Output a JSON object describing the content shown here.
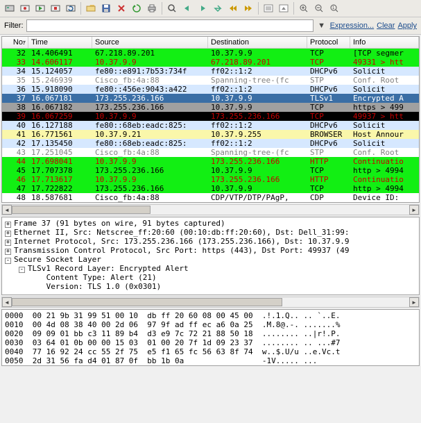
{
  "filter": {
    "label": "Filter:",
    "value": "",
    "expression": "Expression...",
    "clear": "Clear",
    "apply": "Apply"
  },
  "columns": {
    "no": "No.",
    "time": "Time",
    "src": "Source",
    "dst": "Destination",
    "proto": "Protocol",
    "info": "Info"
  },
  "row_colors": {
    "green": {
      "bg": "#12ef13",
      "fg": "#000000"
    },
    "red": {
      "bg": "#12ef13",
      "fg": "#c80000"
    },
    "dhcp": {
      "bg": "#d6e8ff",
      "fg": "#000000"
    },
    "stp": {
      "bg": "#ffffff",
      "fg": "#808080"
    },
    "sel": {
      "bg": "#3a6ea5",
      "fg": "#ffffff"
    },
    "gray": {
      "bg": "#a0a0a0",
      "fg": "#000000"
    },
    "black": {
      "bg": "#000000",
      "fg": "#c80000"
    },
    "yellow": {
      "bg": "#faf7aa",
      "fg": "#000000"
    },
    "httpred": {
      "bg": "#12ef13",
      "fg": "#c80000"
    },
    "http": {
      "bg": "#12ef13",
      "fg": "#000000"
    },
    "plain": {
      "bg": "#ffffff",
      "fg": "#000000"
    }
  },
  "packets": [
    {
      "no": "32",
      "time": "14.406491",
      "src": "67.218.89.201",
      "dst": "10.37.9.9",
      "proto": "TCP",
      "info": "[TCP segmer",
      "c": "green"
    },
    {
      "no": "33",
      "time": "14.606117",
      "src": "10.37.9.9",
      "dst": "67.218.89.201",
      "proto": "TCP",
      "info": "49331 > htt",
      "c": "red"
    },
    {
      "no": "34",
      "time": "15.124057",
      "src": "fe80::e891:7b53:734f",
      "dst": "ff02::1:2",
      "proto": "DHCPv6",
      "info": "Solicit",
      "c": "dhcp"
    },
    {
      "no": "35",
      "time": "15.246939",
      "src": "Cisco_fb:4a:88",
      "dst": "Spanning-tree-(fc",
      "proto": "STP",
      "info": "Conf. Root",
      "c": "stp"
    },
    {
      "no": "36",
      "time": "15.918090",
      "src": "fe80::456e:9043:a422",
      "dst": "ff02::1:2",
      "proto": "DHCPv6",
      "info": "Solicit",
      "c": "dhcp"
    },
    {
      "no": "37",
      "time": "16.067181",
      "src": "173.255.236.166",
      "dst": "10.37.9.9",
      "proto": "TLSv1",
      "info": "Encrypted A",
      "c": "sel"
    },
    {
      "no": "38",
      "time": "16.067182",
      "src": "173.255.236.166",
      "dst": "10.37.9.9",
      "proto": "TCP",
      "info": "https > 499",
      "c": "gray"
    },
    {
      "no": "39",
      "time": "16.067259",
      "src": "10.37.9.9",
      "dst": "173.255.236.166",
      "proto": "TCP",
      "info": "49937 > htt",
      "c": "black"
    },
    {
      "no": "40",
      "time": "16.127188",
      "src": "fe80::68eb:eadc:825:",
      "dst": "ff02::1:2",
      "proto": "DHCPv6",
      "info": "Solicit",
      "c": "dhcp"
    },
    {
      "no": "41",
      "time": "16.771561",
      "src": "10.37.9.21",
      "dst": "10.37.9.255",
      "proto": "BROWSER",
      "info": "Host Annour",
      "c": "yellow"
    },
    {
      "no": "42",
      "time": "17.135450",
      "src": "fe80::68eb:eadc:825:",
      "dst": "ff02::1:2",
      "proto": "DHCPv6",
      "info": "Solicit",
      "c": "dhcp"
    },
    {
      "no": "43",
      "time": "17.251045",
      "src": "Cisco_fb:4a:88",
      "dst": "Spanning-tree-(fc",
      "proto": "STP",
      "info": "Conf. Root",
      "c": "stp"
    },
    {
      "no": "44",
      "time": "17.698041",
      "src": "10.37.9.9",
      "dst": "173.255.236.166",
      "proto": "HTTP",
      "info": "Continuatio",
      "c": "httpred"
    },
    {
      "no": "45",
      "time": "17.707378",
      "src": "173.255.236.166",
      "dst": "10.37.9.9",
      "proto": "TCP",
      "info": "http > 4994",
      "c": "http"
    },
    {
      "no": "46",
      "time": "17.713617",
      "src": "10.37.9.9",
      "dst": "173.255.236.166",
      "proto": "HTTP",
      "info": "Continuatio",
      "c": "httpred"
    },
    {
      "no": "47",
      "time": "17.722822",
      "src": "173.255.236.166",
      "dst": "10.37.9.9",
      "proto": "TCP",
      "info": "http > 4994",
      "c": "http"
    },
    {
      "no": "48",
      "time": "18.587681",
      "src": "Cisco_fb:4a:88",
      "dst": "CDP/VTP/DTP/PAgP,",
      "proto": "CDP",
      "info": "Device ID: ",
      "c": "plain"
    }
  ],
  "tree": [
    {
      "toggle": "+",
      "indent": 0,
      "text": "Frame 37 (91 bytes on wire, 91 bytes captured)"
    },
    {
      "toggle": "+",
      "indent": 0,
      "text": "Ethernet II, Src: Netscree_ff:20:60 (00:10:db:ff:20:60), Dst: Dell_31:99:"
    },
    {
      "toggle": "+",
      "indent": 0,
      "text": "Internet Protocol, Src: 173.255.236.166 (173.255.236.166), Dst: 10.37.9.9"
    },
    {
      "toggle": "+",
      "indent": 0,
      "text": "Transmission Control Protocol, Src Port: https (443), Dst Port: 49937 (49"
    },
    {
      "toggle": "-",
      "indent": 0,
      "text": "Secure Socket Layer"
    },
    {
      "toggle": "-",
      "indent": 1,
      "text": "TLSv1 Record Layer: Encrypted Alert"
    },
    {
      "toggle": "",
      "indent": 2,
      "text": "Content Type: Alert (21)"
    },
    {
      "toggle": "",
      "indent": 2,
      "text": "Version: TLS 1.0 (0x0301)"
    }
  ],
  "hex": [
    "0000  00 21 9b 31 99 51 00 10  db ff 20 60 08 00 45 00  .!.1.Q.. .. `..E.",
    "0010  00 4d 08 38 40 00 2d 06  97 9f ad ff ec a6 0a 25  .M.8@.-. .......%",
    "0020  09 09 01 bb c3 11 89 b4  d3 e9 7c 72 21 88 50 18  ........ ..|r!.P.",
    "0030  03 64 01 0b 00 00 15 03  01 00 20 7f 1d 09 23 37  ........ .. ...#7",
    "0040  77 16 92 24 cc 55 2f 75  e5 f1 65 fc 56 63 8f 74  w..$.U/u ..e.Vc.t",
    "0050  2d 31 56 fa d4 01 87 0f  bb 1b 0a                 -1V..... ..."
  ],
  "scroll": {
    "thumb_left1": 14,
    "thumb_width1": 200,
    "thumb_left2": 14,
    "thumb_width2": 390
  }
}
